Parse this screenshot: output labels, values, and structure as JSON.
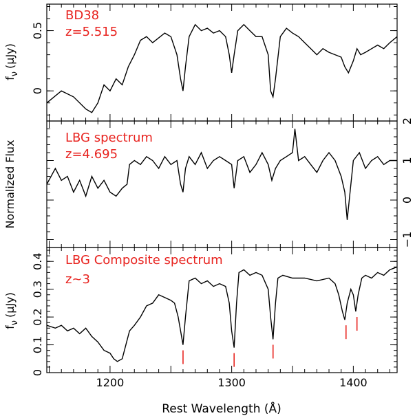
{
  "chart_data": [
    {
      "type": "line",
      "labels": [
        "BD38",
        "z=5.515"
      ],
      "ylabel_main": "f",
      "ylabel_sub": "ν",
      "ylabel_unit": "(μJy)",
      "xlim": [
        1148,
        1436
      ],
      "ylim": [
        -0.25,
        0.72
      ],
      "yticks": [
        0,
        0.5
      ],
      "ytick_labels": [
        "0",
        "0.5"
      ],
      "x": [
        1148,
        1160,
        1170,
        1180,
        1185,
        1190,
        1195,
        1200,
        1205,
        1210,
        1215,
        1220,
        1225,
        1230,
        1235,
        1240,
        1245,
        1250,
        1255,
        1258,
        1260,
        1262,
        1265,
        1270,
        1275,
        1280,
        1285,
        1290,
        1295,
        1298,
        1300,
        1302,
        1305,
        1310,
        1315,
        1320,
        1325,
        1330,
        1332,
        1334,
        1336,
        1340,
        1345,
        1350,
        1355,
        1360,
        1365,
        1370,
        1375,
        1380,
        1385,
        1390,
        1393,
        1396,
        1400,
        1403,
        1406,
        1410,
        1415,
        1420,
        1425,
        1430,
        1436
      ],
      "y": [
        -0.1,
        0.0,
        -0.05,
        -0.15,
        -0.18,
        -0.1,
        0.05,
        0.0,
        0.1,
        0.05,
        0.2,
        0.3,
        0.42,
        0.45,
        0.4,
        0.44,
        0.48,
        0.45,
        0.3,
        0.1,
        0.0,
        0.2,
        0.45,
        0.55,
        0.5,
        0.52,
        0.48,
        0.5,
        0.45,
        0.3,
        0.15,
        0.3,
        0.5,
        0.55,
        0.5,
        0.45,
        0.45,
        0.3,
        0.0,
        -0.05,
        0.1,
        0.45,
        0.52,
        0.48,
        0.45,
        0.4,
        0.35,
        0.3,
        0.35,
        0.32,
        0.3,
        0.28,
        0.2,
        0.15,
        0.25,
        0.35,
        0.3,
        0.32,
        0.35,
        0.38,
        0.35,
        0.4,
        0.45
      ]
    },
    {
      "type": "line",
      "labels": [
        "LBG spectrum",
        "z=4.695"
      ],
      "ylabel": "Normalized Flux",
      "xlim": [
        1148,
        1436
      ],
      "ylim": [
        -1.2,
        2.0
      ],
      "yticks": [
        -1,
        0,
        1,
        2
      ],
      "ytick_labels": [
        "−1",
        "0",
        "1",
        "2"
      ],
      "x": [
        1148,
        1155,
        1160,
        1165,
        1170,
        1175,
        1180,
        1185,
        1190,
        1195,
        1200,
        1205,
        1210,
        1214,
        1216,
        1220,
        1225,
        1230,
        1235,
        1240,
        1245,
        1250,
        1255,
        1258,
        1260,
        1262,
        1265,
        1270,
        1275,
        1280,
        1285,
        1290,
        1295,
        1300,
        1302,
        1305,
        1310,
        1315,
        1320,
        1325,
        1330,
        1333,
        1336,
        1340,
        1345,
        1350,
        1352,
        1355,
        1360,
        1365,
        1370,
        1375,
        1380,
        1385,
        1390,
        1393,
        1395,
        1400,
        1405,
        1410,
        1415,
        1420,
        1425,
        1430,
        1436
      ],
      "y": [
        0.4,
        0.8,
        0.5,
        0.6,
        0.2,
        0.5,
        0.1,
        0.6,
        0.3,
        0.5,
        0.2,
        0.1,
        0.3,
        0.4,
        0.9,
        1.0,
        0.9,
        1.1,
        1.0,
        0.8,
        1.1,
        0.9,
        1.0,
        0.4,
        0.2,
        0.8,
        1.1,
        0.9,
        1.2,
        0.8,
        1.0,
        1.1,
        1.0,
        0.9,
        0.3,
        1.0,
        1.1,
        0.7,
        0.9,
        1.2,
        0.9,
        0.5,
        0.8,
        1.0,
        1.1,
        1.2,
        1.8,
        1.0,
        1.1,
        0.9,
        0.7,
        1.0,
        1.2,
        1.0,
        0.6,
        0.2,
        -0.5,
        1.0,
        1.2,
        0.8,
        1.0,
        1.1,
        0.9,
        1.0,
        1.0
      ]
    },
    {
      "type": "line",
      "labels": [
        "LBG Composite spectrum",
        "z~3"
      ],
      "ylabel_main": "f",
      "ylabel_sub": "ν",
      "ylabel_unit": "(μJy)",
      "xlabel": "Rest Wavelength (Å)",
      "xlim": [
        1148,
        1436
      ],
      "ylim": [
        0,
        0.45
      ],
      "yticks": [
        0,
        0.1,
        0.2,
        0.3,
        0.4
      ],
      "ytick_labels": [
        "0",
        "0.1",
        "0.2",
        "0.3",
        "0.4"
      ],
      "xticks": [
        1200,
        1300,
        1400
      ],
      "xtick_labels": [
        "1200",
        "1300",
        "1400"
      ],
      "x": [
        1148,
        1155,
        1160,
        1165,
        1170,
        1175,
        1180,
        1185,
        1190,
        1195,
        1200,
        1203,
        1206,
        1210,
        1213,
        1216,
        1220,
        1225,
        1230,
        1235,
        1240,
        1245,
        1250,
        1253,
        1256,
        1258,
        1260,
        1262,
        1265,
        1270,
        1275,
        1280,
        1285,
        1290,
        1295,
        1298,
        1300,
        1302,
        1304,
        1306,
        1310,
        1315,
        1320,
        1325,
        1330,
        1332,
        1334,
        1336,
        1338,
        1342,
        1350,
        1360,
        1370,
        1380,
        1385,
        1388,
        1391,
        1393,
        1395,
        1398,
        1400,
        1402,
        1404,
        1407,
        1410,
        1415,
        1420,
        1425,
        1430,
        1436
      ],
      "y": [
        0.17,
        0.16,
        0.17,
        0.15,
        0.16,
        0.14,
        0.16,
        0.13,
        0.11,
        0.08,
        0.07,
        0.05,
        0.04,
        0.05,
        0.1,
        0.15,
        0.17,
        0.2,
        0.24,
        0.25,
        0.28,
        0.27,
        0.26,
        0.25,
        0.2,
        0.15,
        0.1,
        0.2,
        0.33,
        0.34,
        0.32,
        0.33,
        0.31,
        0.32,
        0.31,
        0.25,
        0.15,
        0.09,
        0.25,
        0.36,
        0.37,
        0.35,
        0.36,
        0.35,
        0.3,
        0.2,
        0.12,
        0.25,
        0.34,
        0.35,
        0.34,
        0.34,
        0.33,
        0.34,
        0.32,
        0.28,
        0.22,
        0.19,
        0.25,
        0.3,
        0.28,
        0.22,
        0.28,
        0.34,
        0.35,
        0.34,
        0.36,
        0.35,
        0.37,
        0.38
      ]
    }
  ],
  "line_markers": [
    1260,
    1302,
    1334,
    1394,
    1403
  ],
  "marker_color": "#e8231f"
}
